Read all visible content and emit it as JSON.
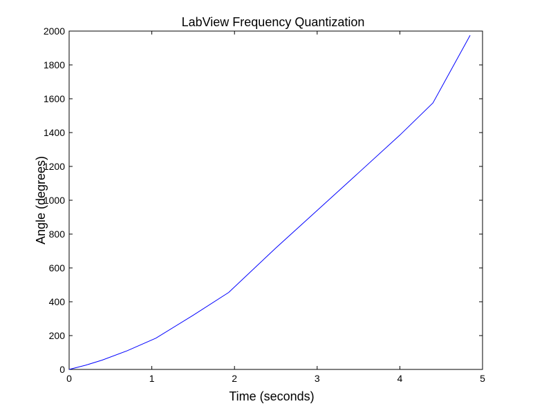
{
  "chart_data": {
    "type": "line",
    "title": "LabView Frequency Quantization",
    "xlabel": "Time (seconds)",
    "ylabel": "Angle (degrees)",
    "xlim": [
      0,
      5
    ],
    "ylim": [
      0,
      2000
    ],
    "x_ticks": [
      0,
      1,
      2,
      3,
      4,
      5
    ],
    "y_ticks": [
      0,
      200,
      400,
      600,
      800,
      1000,
      1200,
      1400,
      1600,
      1800,
      2000
    ],
    "x_tick_labels": [
      "0",
      "1",
      "2",
      "3",
      "4",
      "5"
    ],
    "y_tick_labels": [
      "0",
      "200",
      "400",
      "600",
      "800",
      "1000",
      "1200",
      "1400",
      "1600",
      "1800",
      "2000"
    ],
    "grid": false,
    "series": [
      {
        "color": "#0000ff",
        "x": [
          0,
          0.2,
          0.4,
          0.7,
          1.05,
          1.5,
          1.93,
          2.5,
          3.0,
          3.5,
          4.0,
          4.4,
          4.85
        ],
        "y": [
          0,
          25,
          55,
          110,
          185,
          320,
          455,
          718,
          940,
          1162,
          1385,
          1575,
          1975
        ]
      }
    ]
  }
}
